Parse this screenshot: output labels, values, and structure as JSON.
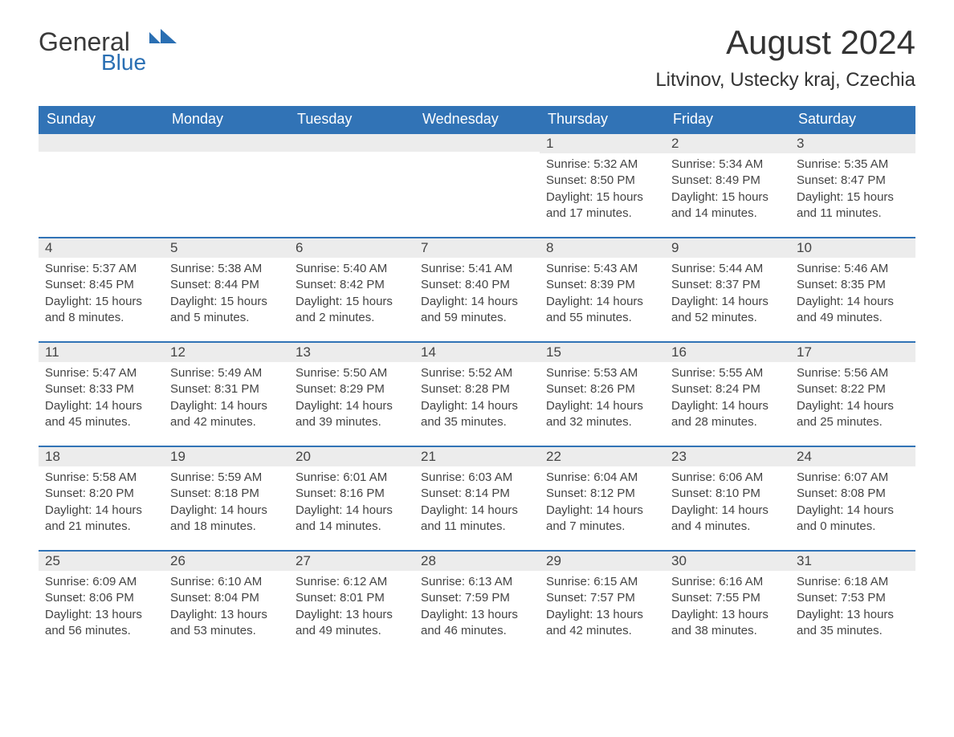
{
  "logo": {
    "word1": "General",
    "word2": "Blue"
  },
  "colors": {
    "header_bg": "#3173b6",
    "header_text": "#ffffff",
    "daynum_bg": "#ececec",
    "row_border": "#3173b6",
    "body_text": "#444444",
    "logo_blue": "#2a6fb3",
    "logo_gray": "#3a3a3a"
  },
  "title": "August 2024",
  "location": "Litvinov, Ustecky kraj, Czechia",
  "weekdays": [
    "Sunday",
    "Monday",
    "Tuesday",
    "Wednesday",
    "Thursday",
    "Friday",
    "Saturday"
  ],
  "weeks": [
    [
      {
        "empty": true
      },
      {
        "empty": true
      },
      {
        "empty": true
      },
      {
        "empty": true
      },
      {
        "n": "1",
        "sunrise": "Sunrise: 5:32 AM",
        "sunset": "Sunset: 8:50 PM",
        "daylight": "Daylight: 15 hours and 17 minutes."
      },
      {
        "n": "2",
        "sunrise": "Sunrise: 5:34 AM",
        "sunset": "Sunset: 8:49 PM",
        "daylight": "Daylight: 15 hours and 14 minutes."
      },
      {
        "n": "3",
        "sunrise": "Sunrise: 5:35 AM",
        "sunset": "Sunset: 8:47 PM",
        "daylight": "Daylight: 15 hours and 11 minutes."
      }
    ],
    [
      {
        "n": "4",
        "sunrise": "Sunrise: 5:37 AM",
        "sunset": "Sunset: 8:45 PM",
        "daylight": "Daylight: 15 hours and 8 minutes."
      },
      {
        "n": "5",
        "sunrise": "Sunrise: 5:38 AM",
        "sunset": "Sunset: 8:44 PM",
        "daylight": "Daylight: 15 hours and 5 minutes."
      },
      {
        "n": "6",
        "sunrise": "Sunrise: 5:40 AM",
        "sunset": "Sunset: 8:42 PM",
        "daylight": "Daylight: 15 hours and 2 minutes."
      },
      {
        "n": "7",
        "sunrise": "Sunrise: 5:41 AM",
        "sunset": "Sunset: 8:40 PM",
        "daylight": "Daylight: 14 hours and 59 minutes."
      },
      {
        "n": "8",
        "sunrise": "Sunrise: 5:43 AM",
        "sunset": "Sunset: 8:39 PM",
        "daylight": "Daylight: 14 hours and 55 minutes."
      },
      {
        "n": "9",
        "sunrise": "Sunrise: 5:44 AM",
        "sunset": "Sunset: 8:37 PM",
        "daylight": "Daylight: 14 hours and 52 minutes."
      },
      {
        "n": "10",
        "sunrise": "Sunrise: 5:46 AM",
        "sunset": "Sunset: 8:35 PM",
        "daylight": "Daylight: 14 hours and 49 minutes."
      }
    ],
    [
      {
        "n": "11",
        "sunrise": "Sunrise: 5:47 AM",
        "sunset": "Sunset: 8:33 PM",
        "daylight": "Daylight: 14 hours and 45 minutes."
      },
      {
        "n": "12",
        "sunrise": "Sunrise: 5:49 AM",
        "sunset": "Sunset: 8:31 PM",
        "daylight": "Daylight: 14 hours and 42 minutes."
      },
      {
        "n": "13",
        "sunrise": "Sunrise: 5:50 AM",
        "sunset": "Sunset: 8:29 PM",
        "daylight": "Daylight: 14 hours and 39 minutes."
      },
      {
        "n": "14",
        "sunrise": "Sunrise: 5:52 AM",
        "sunset": "Sunset: 8:28 PM",
        "daylight": "Daylight: 14 hours and 35 minutes."
      },
      {
        "n": "15",
        "sunrise": "Sunrise: 5:53 AM",
        "sunset": "Sunset: 8:26 PM",
        "daylight": "Daylight: 14 hours and 32 minutes."
      },
      {
        "n": "16",
        "sunrise": "Sunrise: 5:55 AM",
        "sunset": "Sunset: 8:24 PM",
        "daylight": "Daylight: 14 hours and 28 minutes."
      },
      {
        "n": "17",
        "sunrise": "Sunrise: 5:56 AM",
        "sunset": "Sunset: 8:22 PM",
        "daylight": "Daylight: 14 hours and 25 minutes."
      }
    ],
    [
      {
        "n": "18",
        "sunrise": "Sunrise: 5:58 AM",
        "sunset": "Sunset: 8:20 PM",
        "daylight": "Daylight: 14 hours and 21 minutes."
      },
      {
        "n": "19",
        "sunrise": "Sunrise: 5:59 AM",
        "sunset": "Sunset: 8:18 PM",
        "daylight": "Daylight: 14 hours and 18 minutes."
      },
      {
        "n": "20",
        "sunrise": "Sunrise: 6:01 AM",
        "sunset": "Sunset: 8:16 PM",
        "daylight": "Daylight: 14 hours and 14 minutes."
      },
      {
        "n": "21",
        "sunrise": "Sunrise: 6:03 AM",
        "sunset": "Sunset: 8:14 PM",
        "daylight": "Daylight: 14 hours and 11 minutes."
      },
      {
        "n": "22",
        "sunrise": "Sunrise: 6:04 AM",
        "sunset": "Sunset: 8:12 PM",
        "daylight": "Daylight: 14 hours and 7 minutes."
      },
      {
        "n": "23",
        "sunrise": "Sunrise: 6:06 AM",
        "sunset": "Sunset: 8:10 PM",
        "daylight": "Daylight: 14 hours and 4 minutes."
      },
      {
        "n": "24",
        "sunrise": "Sunrise: 6:07 AM",
        "sunset": "Sunset: 8:08 PM",
        "daylight": "Daylight: 14 hours and 0 minutes."
      }
    ],
    [
      {
        "n": "25",
        "sunrise": "Sunrise: 6:09 AM",
        "sunset": "Sunset: 8:06 PM",
        "daylight": "Daylight: 13 hours and 56 minutes."
      },
      {
        "n": "26",
        "sunrise": "Sunrise: 6:10 AM",
        "sunset": "Sunset: 8:04 PM",
        "daylight": "Daylight: 13 hours and 53 minutes."
      },
      {
        "n": "27",
        "sunrise": "Sunrise: 6:12 AM",
        "sunset": "Sunset: 8:01 PM",
        "daylight": "Daylight: 13 hours and 49 minutes."
      },
      {
        "n": "28",
        "sunrise": "Sunrise: 6:13 AM",
        "sunset": "Sunset: 7:59 PM",
        "daylight": "Daylight: 13 hours and 46 minutes."
      },
      {
        "n": "29",
        "sunrise": "Sunrise: 6:15 AM",
        "sunset": "Sunset: 7:57 PM",
        "daylight": "Daylight: 13 hours and 42 minutes."
      },
      {
        "n": "30",
        "sunrise": "Sunrise: 6:16 AM",
        "sunset": "Sunset: 7:55 PM",
        "daylight": "Daylight: 13 hours and 38 minutes."
      },
      {
        "n": "31",
        "sunrise": "Sunrise: 6:18 AM",
        "sunset": "Sunset: 7:53 PM",
        "daylight": "Daylight: 13 hours and 35 minutes."
      }
    ]
  ]
}
